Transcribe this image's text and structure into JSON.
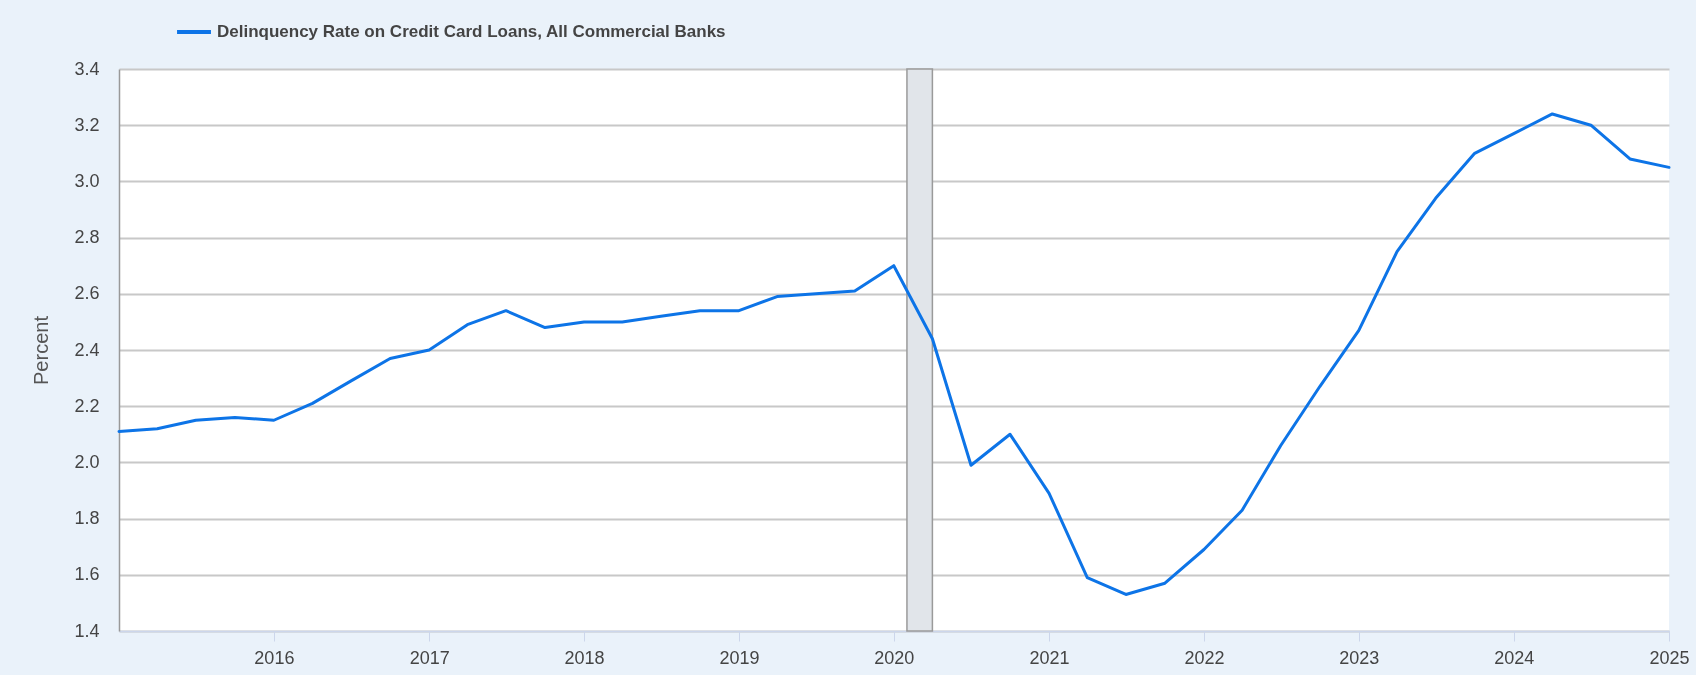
{
  "chart_data": {
    "type": "line",
    "ylabel": "Percent",
    "x": [
      "2015-01",
      "2015-04",
      "2015-07",
      "2015-10",
      "2016-01",
      "2016-04",
      "2016-07",
      "2016-10",
      "2017-01",
      "2017-04",
      "2017-07",
      "2017-10",
      "2018-01",
      "2018-04",
      "2018-07",
      "2018-10",
      "2019-01",
      "2019-04",
      "2019-07",
      "2019-10",
      "2020-01",
      "2020-04",
      "2020-07",
      "2020-10",
      "2021-01",
      "2021-04",
      "2021-07",
      "2021-10",
      "2022-01",
      "2022-04",
      "2022-07",
      "2022-10",
      "2023-01",
      "2023-04",
      "2023-07",
      "2023-10",
      "2024-01",
      "2024-04",
      "2024-07",
      "2024-10",
      "2025-01"
    ],
    "series": [
      {
        "name": "Delinquency Rate on Credit Card Loans, All Commercial Banks",
        "color": "#0d74e7",
        "values": [
          2.11,
          2.12,
          2.15,
          2.16,
          2.15,
          2.21,
          2.29,
          2.37,
          2.4,
          2.49,
          2.54,
          2.48,
          2.5,
          2.5,
          2.52,
          2.54,
          2.54,
          2.59,
          2.6,
          2.61,
          2.7,
          2.44,
          1.99,
          2.1,
          1.89,
          1.59,
          1.53,
          1.57,
          1.69,
          1.83,
          2.06,
          2.27,
          2.47,
          2.75,
          2.94,
          3.1,
          3.17,
          3.24,
          3.2,
          3.08,
          3.05
        ]
      }
    ],
    "xlim": [
      "2015-01",
      "2025-01"
    ],
    "xticks": [
      "2016",
      "2017",
      "2018",
      "2019",
      "2020",
      "2021",
      "2022",
      "2023",
      "2024",
      "2025"
    ],
    "ylim": [
      1.4,
      3.4
    ],
    "yticks": [
      1.4,
      1.6,
      1.8,
      {
        "value": 2,
        "label": "2.0"
      },
      2.2,
      2.4,
      2.6,
      2.8,
      {
        "value": 3,
        "label": "3.0"
      },
      3.2,
      3.4
    ],
    "bands": [
      {
        "axis": "x",
        "from": "2020-02",
        "to": "2020-04",
        "color": "#e1e5ea"
      }
    ],
    "grid": "y",
    "legend": "top left",
    "marker": "none",
    "line_style": "solid"
  }
}
